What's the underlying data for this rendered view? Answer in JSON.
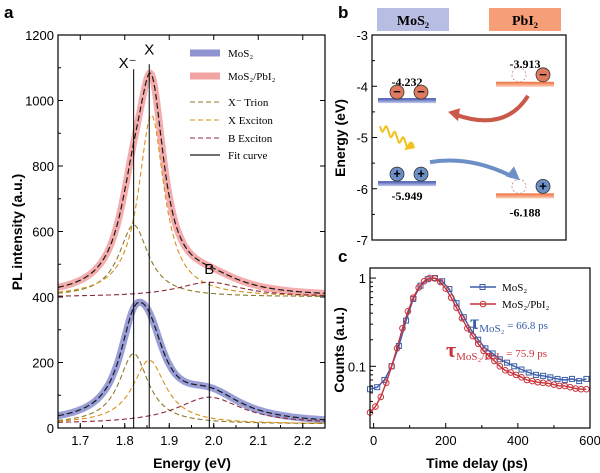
{
  "panels": {
    "a": {
      "label": "a",
      "chart_data": {
        "type": "line",
        "xlabel": "Energy (eV)",
        "ylabel": "PL intensity (a.u.)",
        "xlim": [
          1.65,
          2.25
        ],
        "ylim": [
          0,
          1200
        ],
        "xticks": [
          "1.7",
          "1.8",
          "1.9",
          "2.0",
          "2.1",
          "2.2"
        ],
        "yticks": [
          "0",
          "200",
          "400",
          "600",
          "800",
          "1000",
          "1200"
        ],
        "peak_labels": [
          "X⁻",
          "X",
          "B"
        ],
        "peak_positions": [
          1.82,
          1.855,
          1.99
        ],
        "legend": [
          "MoS₂",
          "MoS₂/PbI₂",
          "X⁻ Trion",
          "X Exciton",
          "B Exciton",
          "Fit curve"
        ],
        "series": [
          {
            "name": "MoS₂",
            "offset": 0,
            "trion": {
              "amp": 215,
              "center": 1.82,
              "width": 0.04
            },
            "exciton": {
              "amp": 195,
              "center": 1.855,
              "width": 0.045
            },
            "b_exciton": {
              "amp": 82,
              "center": 1.99,
              "width": 0.09
            },
            "baseline": 12
          },
          {
            "name": "MoS₂/PbI₂",
            "offset": 400,
            "trion": {
              "amp": 220,
              "center": 1.82,
              "width": 0.04
            },
            "exciton": {
              "amp": 555,
              "center": 1.86,
              "width": 0.035
            },
            "b_exciton": {
              "amp": 45,
              "center": 1.99,
              "width": 0.09
            },
            "baseline": 0
          }
        ]
      }
    },
    "b": {
      "label": "b",
      "header_mos2": "MoS₂",
      "header_pbi2": "PbI₂",
      "ylabel": "Energy (eV)",
      "yticks": [
        "-3",
        "-4",
        "-5",
        "-6",
        "-7"
      ],
      "ylim": [
        -7,
        -3
      ],
      "levels": {
        "mos2_cb": {
          "value": -4.232,
          "label": "-4.232"
        },
        "pbi2_cb": {
          "value": -3.913,
          "label": "-3.913"
        },
        "mos2_vb": {
          "value": -5.949,
          "label": "-5.949"
        },
        "pbi2_vb": {
          "value": -6.188,
          "label": "-6.188"
        }
      },
      "colors": {
        "mos2": "#9ea8d8",
        "pbi2": "#f5956a",
        "electron": "#e07a5f",
        "hole": "#6c8fc7"
      }
    },
    "c": {
      "label": "c",
      "chart_data": {
        "type": "line",
        "xlabel": "Time delay (ps)",
        "ylabel": "Counts (a.u.)",
        "xlim": [
          -10,
          600
        ],
        "ylim_log": [
          0.02,
          1.3
        ],
        "xticks": [
          "0",
          "200",
          "400",
          "600"
        ],
        "yticks": [
          "0.1",
          "1"
        ],
        "series": [
          {
            "name": "MoS₂",
            "color": "#3a5ea8",
            "marker": "square",
            "x": [
              -10,
              10,
              30,
              50,
              70,
              90,
              110,
              130,
              150,
              170,
              190,
              210,
              230,
              250,
              270,
              290,
              310,
              330,
              350,
              370,
              390,
              410,
              430,
              450,
              470,
              490,
              510,
              530,
              550,
              570,
              590
            ],
            "y": [
              0.055,
              0.058,
              0.07,
              0.1,
              0.17,
              0.33,
              0.58,
              0.82,
              0.97,
              1.0,
              0.92,
              0.75,
              0.52,
              0.36,
              0.26,
              0.2,
              0.16,
              0.14,
              0.12,
              0.11,
              0.1,
              0.092,
              0.085,
              0.08,
              0.078,
              0.075,
              0.072,
              0.07,
              0.072,
              0.068,
              0.072
            ]
          },
          {
            "name": "MoS₂/PbI₂",
            "color": "#c8333a",
            "marker": "circle",
            "x": [
              -10,
              5,
              20,
              35,
              50,
              65,
              80,
              95,
              110,
              125,
              140,
              155,
              170,
              185,
              200,
              215,
              230,
              245,
              260,
              275,
              290,
              305,
              320,
              335,
              350,
              365,
              380,
              395,
              410,
              425,
              440,
              455,
              470,
              485,
              500,
              515,
              530,
              545,
              560,
              575,
              590
            ],
            "y": [
              0.03,
              0.035,
              0.045,
              0.065,
              0.1,
              0.16,
              0.27,
              0.42,
              0.6,
              0.78,
              0.92,
              1.0,
              0.99,
              0.9,
              0.76,
              0.6,
              0.46,
              0.35,
              0.27,
              0.22,
              0.18,
              0.15,
              0.13,
              0.115,
              0.1,
              0.09,
              0.085,
              0.08,
              0.075,
              0.07,
              0.068,
              0.066,
              0.065,
              0.064,
              0.062,
              0.06,
              0.06,
              0.058,
              0.056,
              0.055,
              0.055
            ]
          }
        ],
        "legend": [
          "MoS₂",
          "MoS₂/PbI₂"
        ],
        "annotations": {
          "tau_mos2": {
            "symbol": "τ",
            "sub": "MoS₂",
            "value": "= 66.8 ps",
            "color": "#3a5ea8"
          },
          "tau_het": {
            "symbol": "τ",
            "sub": "MoS₂/PbI₂",
            "value": "= 75.9 ps",
            "color": "#c8333a"
          }
        }
      }
    }
  }
}
